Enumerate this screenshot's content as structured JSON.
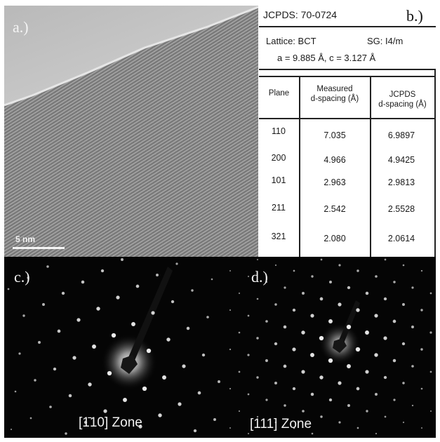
{
  "panel_a": {
    "label": "a.)",
    "scale_bar": "5 nm"
  },
  "panel_b": {
    "label": "b.)",
    "jcpds_ref": "JCPDS: 70-0724",
    "lattice": "Lattice: BCT",
    "space_group": "SG: I4/m",
    "lattice_params": "a = 9.885 Å, c = 3.127 Å",
    "table": {
      "headers": [
        "Plane",
        "Measured d-spacing (Å)",
        "JCPDS d-spacing (Å)"
      ],
      "header_lines": [
        [
          "Plane"
        ],
        [
          "Measured",
          "d-spacing (Å)"
        ],
        [
          "JCPDS",
          "d-spacing (Å)"
        ]
      ],
      "rows": [
        [
          "110",
          "7.035",
          "6.9897"
        ],
        [
          "200",
          "4.966",
          "4.9425"
        ],
        [
          "101",
          "2.963",
          "2.9813"
        ],
        [
          "211",
          "2.542",
          "2.5528"
        ],
        [
          "321",
          "2.080",
          "2.0614"
        ]
      ]
    }
  },
  "panel_c": {
    "label": "c.)",
    "zone": "[1̄10] Zone"
  },
  "panel_d": {
    "label": "d.)",
    "zone": "[111] Zone"
  },
  "colors": {
    "tem_gray": "#7c7c7c",
    "diffraction_bg": "#050505",
    "spot": "#ffffff"
  }
}
